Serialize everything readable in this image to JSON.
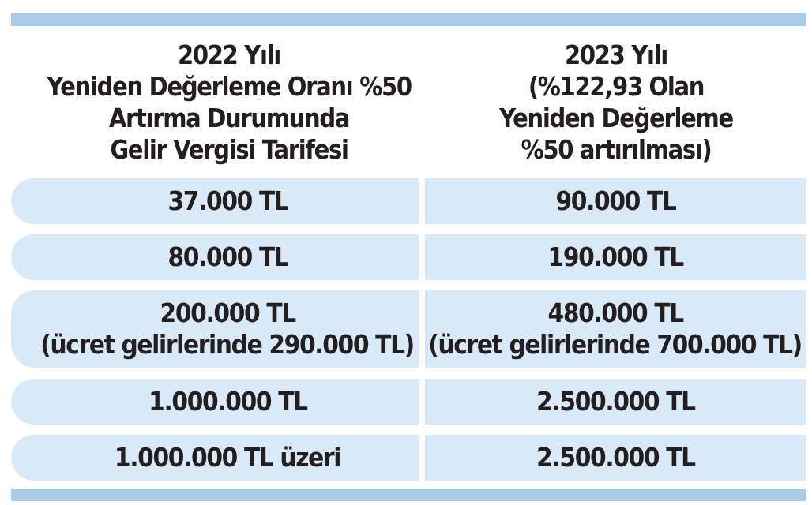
{
  "header": {
    "col1": [
      "2022 Yılı",
      "Yeniden Değerleme Oranı %50",
      "Artırma Durumunda",
      "Gelir Vergisi Tarifesi"
    ],
    "col2": [
      "2023 Yılı",
      "(%122,93 Olan",
      "Yeniden Değerleme",
      "%50 artırılması)"
    ]
  },
  "rows": [
    {
      "col1": [
        "37.000 TL"
      ],
      "col2": [
        "90.000 TL"
      ]
    },
    {
      "col1": [
        "80.000 TL"
      ],
      "col2": [
        "190.000 TL"
      ]
    },
    {
      "col1": [
        "200.000 TL",
        "(ücret gelirlerinde 290.000 TL)"
      ],
      "col2": [
        "480.000 TL",
        "(ücret gelirlerinde 700.000 TL)"
      ]
    },
    {
      "col1": [
        "1.000.000 TL"
      ],
      "col2": [
        "2.500.000 TL"
      ]
    },
    {
      "col1": [
        "1.000.000 TL üzeri"
      ],
      "col2": [
        "2.500.000 TL"
      ]
    }
  ],
  "colors": {
    "band": "#a9cde6",
    "cell": "#d9e9f7",
    "text": "#231f20"
  }
}
